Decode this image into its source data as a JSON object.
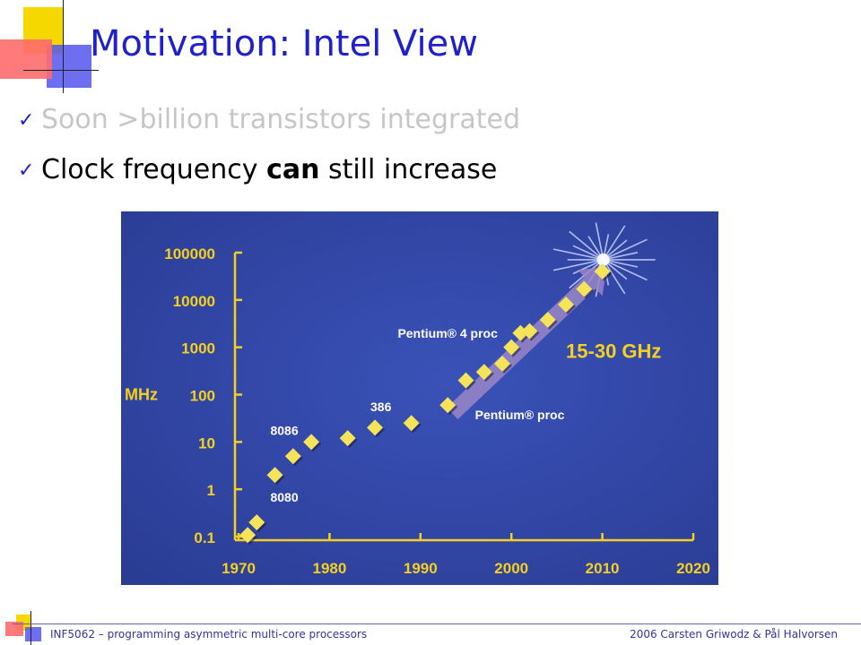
{
  "slide": {
    "title": "Motivation: Intel View",
    "bullets": [
      {
        "text": "Soon >billion transistors integrated"
      },
      {
        "pre": "Clock frequency ",
        "bold": "can",
        "post": " still increase"
      }
    ],
    "footer_left": "INF5062 – programming asymmetric multi-core processors",
    "footer_right": "2006  Carsten Griwodz & Pål Halvorsen"
  },
  "chart_data": {
    "type": "scatter",
    "ylabel": "MHz",
    "yscale": "log",
    "xlim": [
      1970,
      2020
    ],
    "ylim": [
      0.1,
      100000
    ],
    "xticks": [
      "1970",
      "1980",
      "1990",
      "2000",
      "2010",
      "2020"
    ],
    "yticks": [
      "100000",
      "10000",
      "1000",
      "100",
      "10",
      "1",
      "0.1"
    ],
    "points": [
      {
        "x": 1971,
        "y": 0.108
      },
      {
        "x": 1972,
        "y": 0.2
      },
      {
        "x": 1974,
        "y": 2
      },
      {
        "x": 1976,
        "y": 5
      },
      {
        "x": 1978,
        "y": 10
      },
      {
        "x": 1982,
        "y": 12
      },
      {
        "x": 1985,
        "y": 20
      },
      {
        "x": 1989,
        "y": 25
      },
      {
        "x": 1993,
        "y": 60
      },
      {
        "x": 1995,
        "y": 200
      },
      {
        "x": 1997,
        "y": 300
      },
      {
        "x": 1999,
        "y": 450
      },
      {
        "x": 2000,
        "y": 1000
      },
      {
        "x": 2001,
        "y": 2000
      },
      {
        "x": 2002,
        "y": 2200
      },
      {
        "x": 2004,
        "y": 3800
      },
      {
        "x": 2006,
        "y": 8000
      },
      {
        "x": 2008,
        "y": 17000
      },
      {
        "x": 2010,
        "y": 40000
      }
    ],
    "labels": [
      {
        "text": "8086",
        "x": 1973.5,
        "y": 14
      },
      {
        "text": "8080",
        "x": 1973.5,
        "y": 0.55
      },
      {
        "text": "386",
        "x": 1984.5,
        "y": 45
      },
      {
        "text": "Pentium® 4 proc",
        "x": 1987.5,
        "y": 1600
      },
      {
        "text": "Pentium® proc",
        "x": 1996,
        "y": 30
      }
    ],
    "annotation": {
      "text": "15-30 GHz",
      "x": 2006,
      "y": 600
    },
    "arrow": {
      "from": {
        "x": 1993.5,
        "y": 40
      },
      "to": {
        "x": 2010.5,
        "y": 50000
      }
    },
    "colors": {
      "background": "#2a3c94",
      "axis": "#f5d020",
      "marker": "#f5e45a",
      "label": "#ffffff",
      "annotation": "#f5d020",
      "arrow": "#9a86c8"
    }
  }
}
